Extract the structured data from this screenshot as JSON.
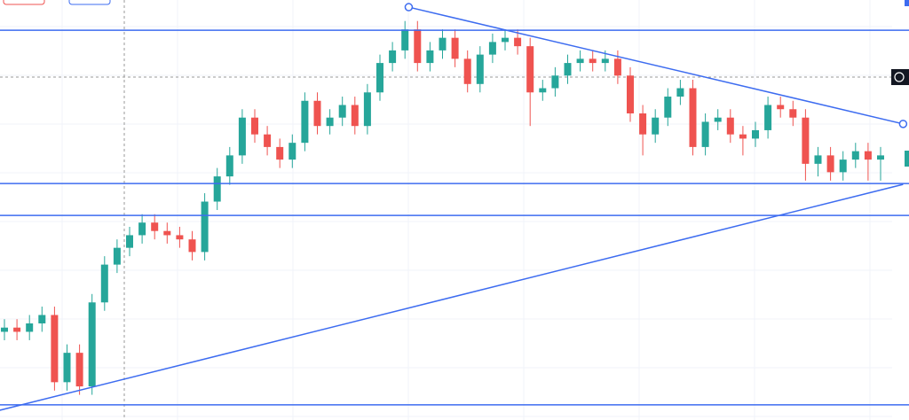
{
  "chart_data": {
    "type": "candlestick",
    "ylim": [
      0,
      100
    ],
    "up_color": "#26a69a",
    "down_color": "#ef5350",
    "line_color": "#3d6cf0",
    "grid": true,
    "open": [
      21,
      22,
      21,
      23,
      25,
      9,
      16,
      8,
      28,
      37,
      41,
      44,
      47,
      45,
      44,
      43,
      40,
      52,
      58,
      63,
      72,
      68,
      65,
      62,
      66,
      76,
      70,
      72,
      75,
      70,
      78,
      85,
      88,
      93,
      85,
      88,
      91,
      86,
      80,
      87,
      90,
      91,
      89,
      78,
      79,
      82,
      85,
      86,
      85,
      86,
      82,
      73,
      68,
      72,
      77,
      79,
      65,
      71,
      72,
      68,
      67,
      69,
      75,
      74,
      72,
      61,
      63,
      59,
      62,
      64,
      62
    ],
    "high": [
      24,
      24,
      25,
      27,
      27,
      18,
      18,
      30,
      39,
      43,
      46,
      49,
      49,
      47,
      46,
      45,
      54,
      60,
      65,
      74,
      74,
      70,
      67,
      68,
      78,
      78,
      74,
      77,
      77,
      80,
      87,
      90,
      95,
      95,
      90,
      93,
      93,
      88,
      89,
      92,
      93,
      93,
      91,
      81,
      84,
      87,
      88,
      88,
      88,
      88,
      84,
      75,
      74,
      79,
      81,
      81,
      73,
      74,
      74,
      70,
      71,
      77,
      77,
      76,
      74,
      65,
      65,
      64,
      66,
      66,
      65
    ],
    "low": [
      19,
      19,
      19,
      21,
      7,
      7,
      6,
      6,
      26,
      35,
      39,
      42,
      43,
      42,
      41,
      38,
      38,
      50,
      56,
      61,
      66,
      63,
      60,
      60,
      64,
      68,
      68,
      70,
      68,
      68,
      76,
      83,
      86,
      83,
      83,
      86,
      84,
      78,
      78,
      85,
      88,
      87,
      70,
      76,
      77,
      80,
      83,
      83,
      83,
      80,
      71,
      63,
      66,
      70,
      75,
      63,
      63,
      69,
      66,
      63,
      65,
      67,
      72,
      70,
      57,
      58,
      57,
      57,
      60,
      57,
      57
    ],
    "close": [
      22,
      21,
      23,
      25,
      9,
      16,
      8,
      28,
      37,
      41,
      44,
      47,
      45,
      44,
      43,
      40,
      52,
      58,
      63,
      72,
      68,
      65,
      62,
      66,
      76,
      70,
      72,
      75,
      70,
      78,
      85,
      88,
      93,
      85,
      88,
      91,
      86,
      80,
      87,
      90,
      91,
      89,
      78,
      79,
      82,
      85,
      86,
      85,
      86,
      82,
      73,
      68,
      72,
      77,
      79,
      65,
      71,
      72,
      68,
      67,
      69,
      75,
      74,
      72,
      61,
      63,
      59,
      62,
      64,
      62,
      63
    ],
    "hlines": [
      92.8,
      56.3,
      48.7,
      3.6
    ],
    "trendlines": [
      {
        "x": [
          32.3,
          71.8
        ],
        "values": [
          98.3,
          70.5
        ]
      },
      {
        "x": [
          -0.4,
          71.8
        ],
        "values": [
          2.3,
          56.1
        ]
      }
    ]
  }
}
